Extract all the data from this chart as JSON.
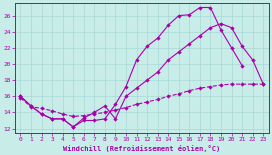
{
  "xlabel": "Windchill (Refroidissement éolien,°C)",
  "bg_color": "#c8ece8",
  "grid_color": "#a8d8d4",
  "line_color": "#aa00aa",
  "xlim": [
    -0.5,
    23.5
  ],
  "ylim": [
    11.5,
    27.5
  ],
  "yticks": [
    12,
    14,
    16,
    18,
    20,
    22,
    24,
    26
  ],
  "xticks": [
    0,
    1,
    2,
    3,
    4,
    5,
    6,
    7,
    8,
    9,
    10,
    11,
    12,
    13,
    14,
    15,
    16,
    17,
    18,
    19,
    20,
    21,
    22,
    23
  ],
  "line1_x": [
    0,
    1,
    2,
    3,
    4,
    5,
    6,
    7,
    8,
    9,
    10,
    11,
    12,
    13,
    14,
    15,
    16,
    17,
    18,
    19,
    20,
    21
  ],
  "line1_y": [
    16.0,
    14.8,
    13.8,
    13.2,
    13.2,
    12.2,
    13.0,
    13.0,
    13.2,
    15.0,
    17.2,
    20.5,
    22.2,
    23.2,
    24.8,
    26.0,
    26.1,
    27.0,
    27.0,
    24.2,
    22.0,
    19.8
  ],
  "line2_x": [
    0,
    1,
    2,
    3,
    4,
    5,
    6,
    7,
    8,
    9,
    10,
    11,
    12,
    13,
    14,
    15,
    16,
    17,
    18,
    19,
    20,
    21,
    22,
    23
  ],
  "line2_y": [
    16.0,
    14.8,
    13.8,
    13.2,
    13.2,
    12.2,
    13.3,
    14.0,
    14.8,
    13.2,
    16.0,
    17.0,
    18.0,
    19.0,
    20.5,
    21.5,
    22.5,
    23.5,
    24.5,
    25.0,
    24.5,
    22.2,
    20.5,
    17.5
  ],
  "line3_x": [
    0,
    1,
    2,
    3,
    4,
    5,
    6,
    7,
    8,
    9,
    10,
    11,
    12,
    13,
    14,
    15,
    16,
    17,
    18,
    19,
    20,
    21,
    22,
    23
  ],
  "line3_y": [
    15.8,
    14.7,
    14.5,
    14.2,
    13.8,
    13.5,
    13.6,
    13.8,
    14.0,
    14.3,
    14.6,
    15.0,
    15.3,
    15.6,
    16.0,
    16.3,
    16.7,
    17.0,
    17.2,
    17.4,
    17.5,
    17.5,
    17.5,
    17.5
  ]
}
